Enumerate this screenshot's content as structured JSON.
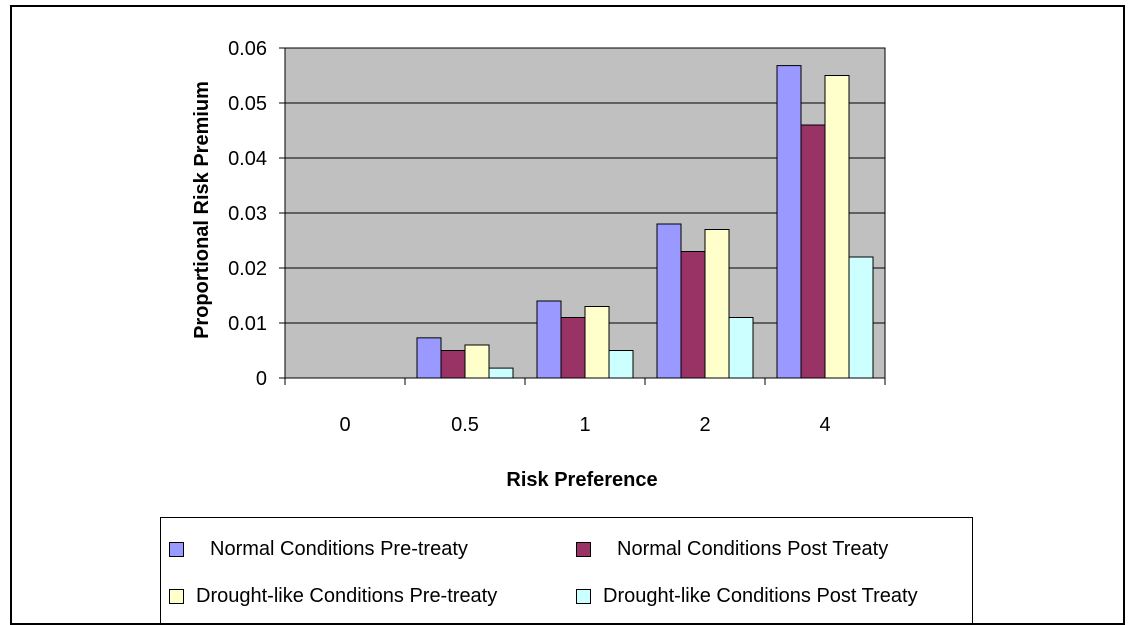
{
  "chart_data": {
    "type": "bar",
    "xlabel": "Risk Preference",
    "ylabel": "Proportional Risk Premium",
    "categories": [
      "0",
      "0.5",
      "1",
      "2",
      "4"
    ],
    "ylim": [
      0,
      0.06
    ],
    "yticks": [
      "0",
      "0.01",
      "0.02",
      "0.03",
      "0.04",
      "0.05",
      "0.06"
    ],
    "grid": true,
    "legend_position": "bottom",
    "plot_background": "#c0c0c0",
    "series": [
      {
        "name": "Normal Conditions Pre-treaty",
        "color": "#9999ff",
        "values": [
          0,
          0.0073,
          0.014,
          0.028,
          0.0568
        ]
      },
      {
        "name": "Normal Conditions Post Treaty",
        "color": "#993366",
        "values": [
          0,
          0.005,
          0.011,
          0.023,
          0.046
        ]
      },
      {
        "name": "Drought-like Conditions Pre-treaty",
        "color": "#ffffcc",
        "values": [
          0,
          0.006,
          0.013,
          0.027,
          0.055
        ]
      },
      {
        "name": "Drought-like Conditions Post Treaty",
        "color": "#ccffff",
        "values": [
          0,
          0.0018,
          0.005,
          0.011,
          0.022
        ]
      }
    ]
  }
}
